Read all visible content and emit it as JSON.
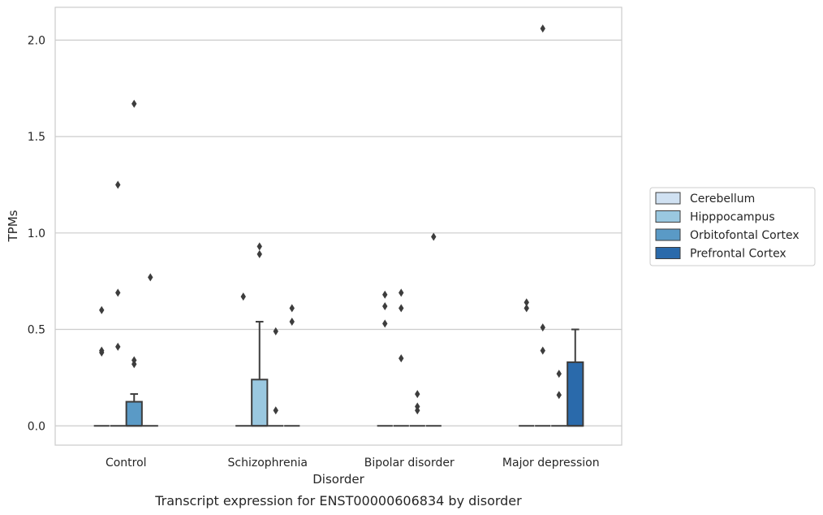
{
  "chart_data": {
    "type": "box",
    "caption": "Transcript expression for ENST00000606834 by disorder",
    "xlabel": "Disorder",
    "ylabel": "TPMs",
    "ylim": [
      -0.1,
      2.17
    ],
    "yticks": [
      0.0,
      0.5,
      1.0,
      1.5,
      2.0
    ],
    "ytick_labels": [
      "0.0",
      "0.5",
      "1.0",
      "1.5",
      "2.0"
    ],
    "grid": "horizontal",
    "legend_position": "right",
    "categories": [
      "Control",
      "Schizophrenia",
      "Bipolar disorder",
      "Major depression"
    ],
    "series": [
      {
        "name": "Cerebellum",
        "color": "#d0e1f2",
        "boxes": [
          {
            "q1": 0,
            "median": 0,
            "q3": 0,
            "whisker_low": 0,
            "whisker_high": 0,
            "outliers": [
              0.38,
              0.39,
              0.6
            ]
          },
          {
            "q1": 0,
            "median": 0,
            "q3": 0,
            "whisker_low": 0,
            "whisker_high": 0,
            "outliers": [
              0.67
            ]
          },
          {
            "q1": 0,
            "median": 0,
            "q3": 0,
            "whisker_low": 0,
            "whisker_high": 0,
            "outliers": [
              0.53,
              0.62,
              0.68
            ]
          },
          {
            "q1": 0,
            "median": 0,
            "q3": 0,
            "whisker_low": 0,
            "whisker_high": 0,
            "outliers": [
              0.61,
              0.64
            ]
          }
        ]
      },
      {
        "name": "Hipppocampus",
        "color": "#9ac8e0",
        "boxes": [
          {
            "q1": 0,
            "median": 0,
            "q3": 0,
            "whisker_low": 0,
            "whisker_high": 0,
            "outliers": [
              0.41,
              0.69,
              1.25
            ]
          },
          {
            "q1": 0,
            "median": 0,
            "q3": 0.24,
            "whisker_low": 0,
            "whisker_high": 0.54,
            "outliers": [
              0.89,
              0.93
            ]
          },
          {
            "q1": 0,
            "median": 0,
            "q3": 0,
            "whisker_low": 0,
            "whisker_high": 0,
            "outliers": [
              0.35,
              0.61,
              0.69
            ]
          },
          {
            "q1": 0,
            "median": 0,
            "q3": 0,
            "whisker_low": 0,
            "whisker_high": 0,
            "outliers": [
              0.39,
              0.51,
              2.06
            ]
          }
        ]
      },
      {
        "name": "Orbitofontal Cortex",
        "color": "#5a9ac6",
        "boxes": [
          {
            "q1": 0,
            "median": 0,
            "q3": 0.125,
            "whisker_low": 0,
            "whisker_high": 0.165,
            "outliers": [
              0.32,
              0.34,
              1.67
            ]
          },
          {
            "q1": 0,
            "median": 0,
            "q3": 0,
            "whisker_low": 0,
            "whisker_high": 0,
            "outliers": [
              0.08,
              0.49
            ]
          },
          {
            "q1": 0,
            "median": 0,
            "q3": 0,
            "whisker_low": 0,
            "whisker_high": 0,
            "outliers": [
              0.08,
              0.1,
              0.165
            ]
          },
          {
            "q1": 0,
            "median": 0,
            "q3": 0,
            "whisker_low": 0,
            "whisker_high": 0,
            "outliers": [
              0.16,
              0.27
            ]
          }
        ]
      },
      {
        "name": "Prefrontal Cortex",
        "color": "#2a6aab",
        "boxes": [
          {
            "q1": 0,
            "median": 0,
            "q3": 0,
            "whisker_low": 0,
            "whisker_high": 0,
            "outliers": [
              0.77
            ]
          },
          {
            "q1": 0,
            "median": 0,
            "q3": 0,
            "whisker_low": 0,
            "whisker_high": 0,
            "outliers": [
              0.54,
              0.61
            ]
          },
          {
            "q1": 0,
            "median": 0,
            "q3": 0,
            "whisker_low": 0,
            "whisker_high": 0,
            "outliers": [
              0.98
            ]
          },
          {
            "q1": 0,
            "median": 0,
            "q3": 0.33,
            "whisker_low": 0,
            "whisker_high": 0.5,
            "outliers": []
          }
        ]
      }
    ]
  }
}
